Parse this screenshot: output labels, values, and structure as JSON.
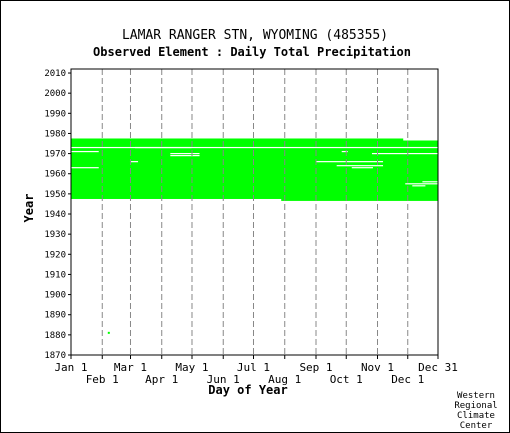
{
  "chart_data": {
    "type": "heatmap",
    "title": "LAMAR RANGER STN, WYOMING   (485355)",
    "subtitle": "Observed Element : Daily Total Precipitation",
    "xlabel": "Day of Year",
    "ylabel": "Year",
    "xlim": [
      1,
      365
    ],
    "ylim": [
      1870,
      2012
    ],
    "yticks": [
      2010,
      2000,
      1990,
      1980,
      1970,
      1960,
      1950,
      1940,
      1930,
      1920,
      1910,
      1900,
      1890,
      1880,
      1870
    ],
    "xticks_upper": [
      {
        "label": "Jan 1",
        "day": 1
      },
      {
        "label": "Mar 1",
        "day": 60
      },
      {
        "label": "May 1",
        "day": 121
      },
      {
        "label": "Jul 1",
        "day": 182
      },
      {
        "label": "Sep 1",
        "day": 244
      },
      {
        "label": "Nov 1",
        "day": 305
      },
      {
        "label": "Dec 31",
        "day": 365
      }
    ],
    "xticks_lower": [
      {
        "label": "Feb 1",
        "day": 32
      },
      {
        "label": "Apr 1",
        "day": 91
      },
      {
        "label": "Jun 1",
        "day": 152
      },
      {
        "label": "Aug 1",
        "day": 213
      },
      {
        "label": "Oct 1",
        "day": 274
      },
      {
        "label": "Dec 1",
        "day": 335
      }
    ],
    "grid": true,
    "colors": {
      "observed": "#00ff00",
      "missing": "#ffffff",
      "grid": "#888888"
    },
    "observed_blocks": [
      {
        "year_start": 1948,
        "year_end": 1976,
        "day_start": 1,
        "day_end": 365
      },
      {
        "year_start": 1948,
        "year_end": 1977,
        "day_start": 1,
        "day_end": 330
      },
      {
        "year_start": 1947,
        "year_end": 1948,
        "day_start": 210,
        "day_end": 365
      },
      {
        "year_start": 1881,
        "year_end": 1881,
        "day_start": 38,
        "day_end": 39
      }
    ],
    "missing_gaps": [
      {
        "year": 1973,
        "day_start": 1,
        "day_end": 365
      },
      {
        "year": 1971,
        "day_start": 1,
        "day_end": 28
      },
      {
        "year": 1963,
        "day_start": 1,
        "day_end": 28
      },
      {
        "year": 1973,
        "day_start": 65,
        "day_end": 120
      },
      {
        "year": 1970,
        "day_start": 100,
        "day_end": 128
      },
      {
        "year": 1969,
        "day_start": 100,
        "day_end": 128
      },
      {
        "year": 1966,
        "day_start": 60,
        "day_end": 67
      },
      {
        "year": 1966,
        "day_start": 245,
        "day_end": 310
      },
      {
        "year": 1970,
        "day_start": 300,
        "day_end": 365
      },
      {
        "year": 1964,
        "day_start": 265,
        "day_end": 310
      },
      {
        "year": 1963,
        "day_start": 280,
        "day_end": 300
      },
      {
        "year": 1956,
        "day_start": 350,
        "day_end": 365
      },
      {
        "year": 1955,
        "day_start": 333,
        "day_end": 365
      },
      {
        "year": 1954,
        "day_start": 340,
        "day_end": 352
      },
      {
        "year": 1971,
        "day_start": 270,
        "day_end": 275
      }
    ]
  },
  "credit": [
    "Western",
    "Regional",
    "Climate",
    "Center"
  ]
}
